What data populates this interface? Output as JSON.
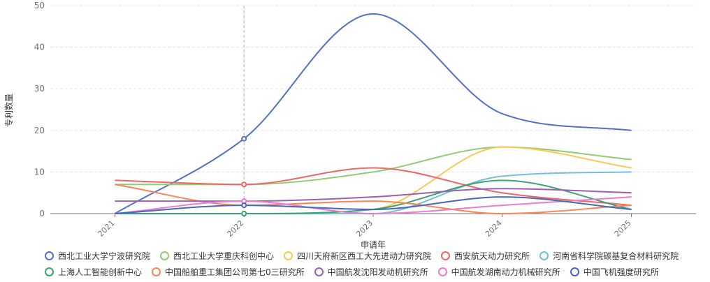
{
  "chart_data": {
    "type": "line",
    "xlabel": "申请年",
    "ylabel": "专利数量",
    "x": [
      "2021",
      "2022",
      "2023",
      "2024",
      "2025"
    ],
    "ylim": [
      0,
      50
    ],
    "yticks": [
      "0",
      "10",
      "20",
      "30",
      "40",
      "50"
    ],
    "grid": true,
    "highlight_x": "2022",
    "legend_position": "bottom",
    "series": [
      {
        "name": "西北工业大学宁波研究院",
        "color": "#5470c6",
        "values": [
          0,
          18,
          48,
          24,
          20
        ]
      },
      {
        "name": "西北工业大学重庆科创中心",
        "color": "#91cc75",
        "values": [
          7,
          7,
          10,
          16,
          13
        ]
      },
      {
        "name": "四川天府新区西工大先进动力研究院",
        "color": "#fac858",
        "values": [
          0,
          0,
          1,
          16,
          11
        ]
      },
      {
        "name": "西安航天动力研究所",
        "color": "#ee6666",
        "values": [
          8,
          7,
          11,
          5,
          2
        ]
      },
      {
        "name": "河南省科学院碳基复合材料研究院",
        "color": "#73c0de",
        "values": [
          0,
          0,
          0,
          9,
          10
        ]
      },
      {
        "name": "上海人工智能创新中心",
        "color": "#3ba272",
        "values": [
          0,
          0,
          1,
          8,
          1
        ]
      },
      {
        "name": "中国船舶重工集团公司第七0三研究所",
        "color": "#fc8452",
        "values": [
          7,
          2,
          3,
          0,
          2
        ]
      },
      {
        "name": "中国航发沈阳发动机研究所",
        "color": "#9a60b4",
        "values": [
          3,
          3,
          4,
          6,
          5
        ]
      },
      {
        "name": "中国航发湖南动力机械研究所",
        "color": "#ea7ccc",
        "values": [
          0,
          3,
          0,
          2,
          4
        ]
      },
      {
        "name": "中国飞机强度研究所",
        "color": "#4a65bf",
        "values": [
          0,
          2,
          1,
          4,
          1
        ]
      }
    ]
  }
}
